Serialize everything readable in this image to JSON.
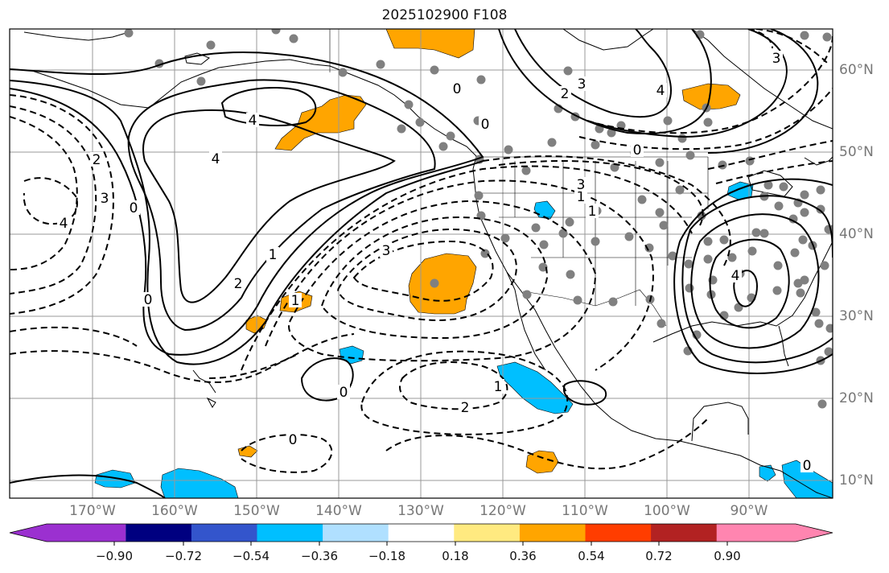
{
  "title": "2025102900 F108",
  "map": {
    "lon_labels": [
      "170°W",
      "160°W",
      "150°W",
      "140°W",
      "130°W",
      "120°W",
      "110°W",
      "100°W",
      "90°W"
    ],
    "lat_labels": [
      "60°N",
      "50°N",
      "40°N",
      "30°N",
      "20°N",
      "10°N"
    ],
    "contour_labels": [
      "0",
      "1",
      "2",
      "3",
      "4",
      "0",
      "1",
      "2",
      "3",
      "4",
      "0",
      "1",
      "2",
      "3",
      "4",
      "0",
      "1",
      "2",
      "3",
      "4"
    ],
    "frame_color": "#000000",
    "grid_color": "#999999",
    "coast_color": "#000000",
    "station_color": "#808080"
  },
  "colorbar": {
    "ticks": [
      "−0.90",
      "−0.72",
      "−0.54",
      "−0.36",
      "−0.18",
      "0.18",
      "0.36",
      "0.54",
      "0.72",
      "0.90"
    ],
    "colors": [
      "#9b30d0",
      "#000080",
      "#3355cc",
      "#00bfff",
      "#b0e0ff",
      "#ffffff",
      "#ffea80",
      "#ffa500",
      "#ff3d00",
      "#b22222",
      "#ff85b0"
    ]
  }
}
